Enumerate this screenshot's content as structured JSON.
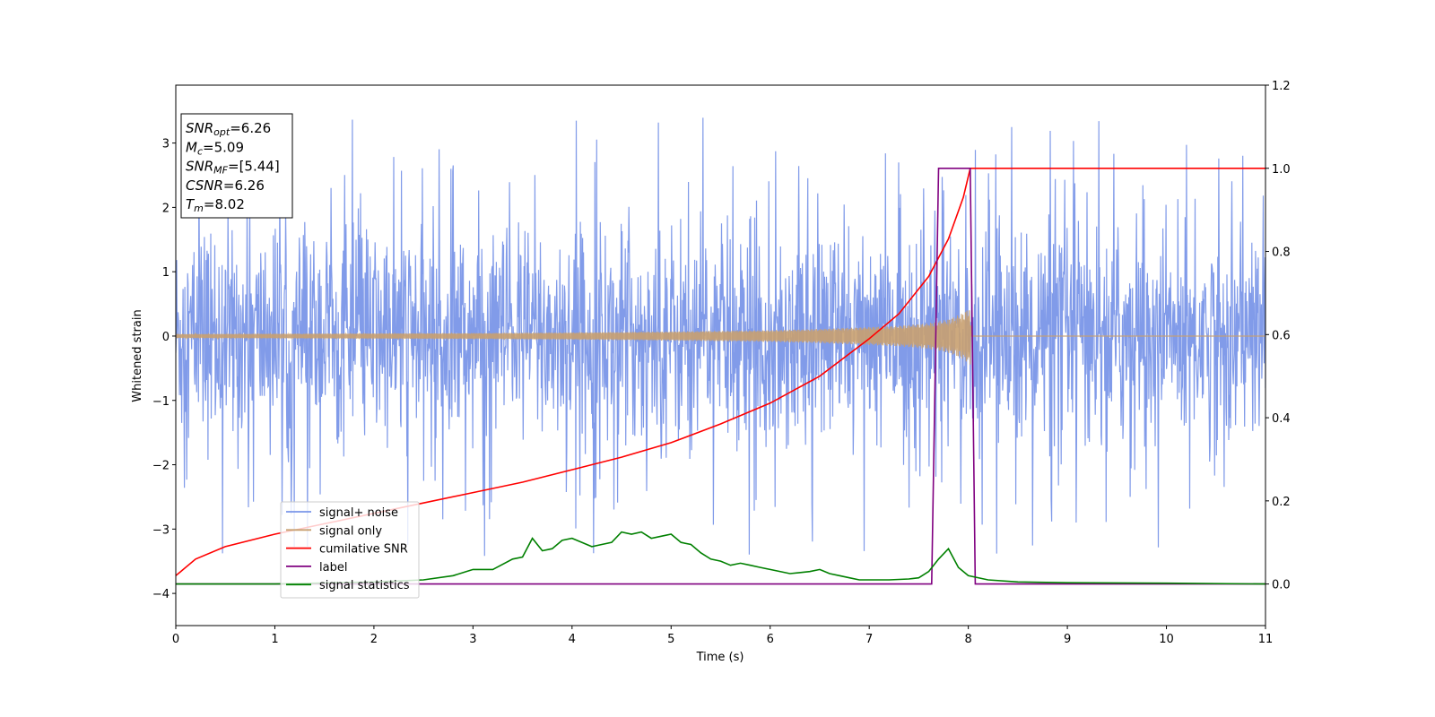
{
  "chart_data": {
    "type": "line",
    "title": "",
    "xlabel": "Time (s)",
    "ylabel": "Whitened strain",
    "xlim": [
      0,
      11
    ],
    "ylim": [
      -4.5,
      3.9
    ],
    "y2lim": [
      -0.1,
      1.2
    ],
    "xticks": [
      0,
      1,
      2,
      3,
      4,
      5,
      6,
      7,
      8,
      9,
      10,
      11
    ],
    "yticks": [
      -4,
      -3,
      -2,
      -1,
      0,
      1,
      2,
      3
    ],
    "ytick_labels": [
      "−4",
      "−3",
      "−2",
      "−1",
      "0",
      "1",
      "2",
      "3"
    ],
    "y2ticks": [
      0.0,
      0.2,
      0.4,
      0.6,
      0.8,
      1.0,
      1.2
    ],
    "y2tick_labels": [
      "0.0",
      "0.2",
      "0.4",
      "0.6",
      "0.8",
      "1.0",
      "1.2"
    ],
    "grid": false,
    "legend_position": "lower-left",
    "annotation": {
      "lines": [
        {
          "base": "SNR",
          "sub": "opt",
          "value": "=6.26"
        },
        {
          "base": "M",
          "sub": "c",
          "value": "=5.09"
        },
        {
          "base": "SNR",
          "sub": "MF",
          "value": "=[5.44]"
        },
        {
          "base": "CSNR",
          "sub": "",
          "value": "=6.26"
        },
        {
          "base": "T",
          "sub": "m",
          "value": "=8.02"
        }
      ]
    },
    "series": [
      {
        "name": "signal+ noise",
        "axis": "left",
        "color": "#7a96e8",
        "description_samples": {
          "x_range": [
            0,
            11
          ],
          "typical_band": [
            -2.0,
            2.4
          ],
          "max_peak": 3.5,
          "min_peak": -4.15
        }
      },
      {
        "name": "signal only",
        "axis": "left",
        "color": "#c8a070",
        "envelope": {
          "x": [
            0,
            1,
            2,
            3,
            4,
            5,
            6,
            6.5,
            7,
            7.3,
            7.6,
            7.8,
            7.95,
            8.02,
            8.03,
            11
          ],
          "amplitude": [
            0.03,
            0.035,
            0.04,
            0.045,
            0.055,
            0.07,
            0.09,
            0.11,
            0.14,
            0.16,
            0.2,
            0.26,
            0.36,
            0.45,
            0.0,
            0.0
          ]
        }
      },
      {
        "name": "cumilative SNR",
        "axis": "right",
        "color": "#ff0000",
        "x": [
          0,
          0.05,
          0.2,
          0.5,
          1,
          1.5,
          2,
          2.5,
          3,
          3.5,
          4,
          4.5,
          5,
          5.5,
          6,
          6.5,
          7,
          7.3,
          7.6,
          7.8,
          7.95,
          8.02,
          11
        ],
        "y": [
          0.02,
          0.03,
          0.06,
          0.09,
          0.12,
          0.145,
          0.17,
          0.195,
          0.22,
          0.245,
          0.275,
          0.305,
          0.34,
          0.385,
          0.435,
          0.5,
          0.59,
          0.65,
          0.74,
          0.83,
          0.93,
          1.0,
          1.0
        ]
      },
      {
        "name": "label",
        "axis": "right",
        "color": "#800080",
        "x": [
          0,
          7.63,
          7.7,
          8.02,
          8.07,
          11
        ],
        "y": [
          0.0,
          0.0,
          1.0,
          1.0,
          0.0,
          0.0
        ]
      },
      {
        "name": "signal statistics",
        "axis": "right",
        "color": "#008000",
        "x": [
          0,
          1,
          2,
          2.5,
          2.8,
          3,
          3.2,
          3.4,
          3.5,
          3.6,
          3.7,
          3.8,
          3.9,
          4.0,
          4.1,
          4.2,
          4.3,
          4.4,
          4.5,
          4.6,
          4.7,
          4.8,
          4.9,
          5.0,
          5.1,
          5.2,
          5.3,
          5.4,
          5.5,
          5.6,
          5.7,
          5.8,
          5.9,
          6.0,
          6.2,
          6.4,
          6.5,
          6.6,
          6.7,
          6.8,
          6.9,
          7.0,
          7.2,
          7.4,
          7.5,
          7.6,
          7.7,
          7.8,
          7.9,
          8.0,
          8.2,
          8.5,
          9,
          10,
          11
        ],
        "y": [
          0.0,
          0.0,
          0.005,
          0.01,
          0.02,
          0.035,
          0.035,
          0.06,
          0.065,
          0.11,
          0.08,
          0.085,
          0.105,
          0.11,
          0.1,
          0.09,
          0.095,
          0.1,
          0.125,
          0.12,
          0.125,
          0.11,
          0.115,
          0.12,
          0.1,
          0.095,
          0.075,
          0.06,
          0.055,
          0.045,
          0.05,
          0.045,
          0.04,
          0.035,
          0.025,
          0.03,
          0.035,
          0.025,
          0.02,
          0.015,
          0.01,
          0.01,
          0.01,
          0.012,
          0.015,
          0.03,
          0.06,
          0.085,
          0.04,
          0.02,
          0.01,
          0.005,
          0.003,
          0.002,
          0.0
        ]
      }
    ]
  }
}
